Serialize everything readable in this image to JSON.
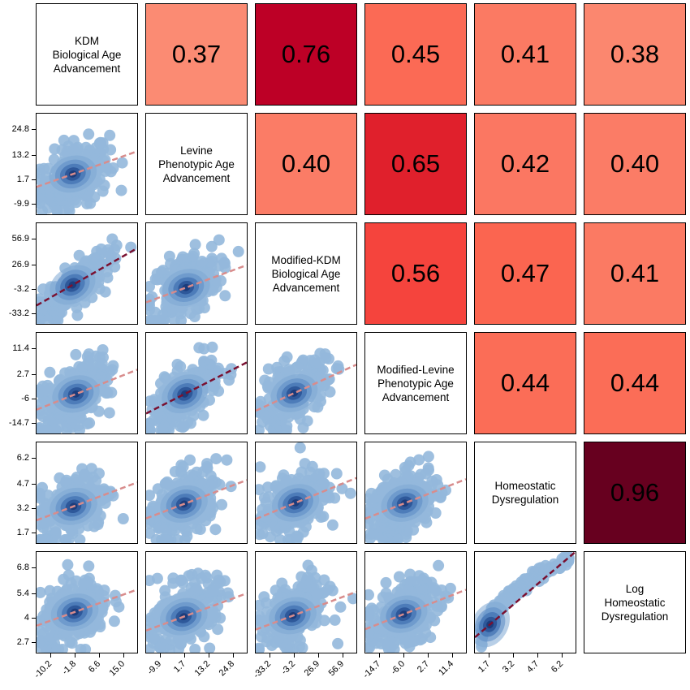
{
  "chart_data": {
    "type": "pairs_matrix",
    "variables": [
      "KDM\nBiological Age\nAdvancement",
      "Levine\nPhenotypic Age\nAdvancement",
      "Modified-KDM\nBiological Age\nAdvancement",
      "Modified-Levine\nPhenotypic Age\nAdvancement",
      "Homeostatic\nDysregulation",
      "Log\nHomeostatic\nDysregulation"
    ],
    "correlations": [
      {
        "row": 0,
        "col": 1,
        "value": "0.37",
        "r": 0.37,
        "color": "#fb8b73"
      },
      {
        "row": 0,
        "col": 2,
        "value": "0.76",
        "r": 0.76,
        "color": "#bd0026"
      },
      {
        "row": 0,
        "col": 3,
        "value": "0.45",
        "r": 0.45,
        "color": "#fb6a55"
      },
      {
        "row": 0,
        "col": 4,
        "value": "0.41",
        "r": 0.41,
        "color": "#fb7a63"
      },
      {
        "row": 0,
        "col": 5,
        "value": "0.38",
        "r": 0.38,
        "color": "#fb876f"
      },
      {
        "row": 1,
        "col": 2,
        "value": "0.40",
        "r": 0.4,
        "color": "#fb7c66"
      },
      {
        "row": 1,
        "col": 3,
        "value": "0.65",
        "r": 0.65,
        "color": "#e0202c"
      },
      {
        "row": 1,
        "col": 4,
        "value": "0.42",
        "r": 0.42,
        "color": "#fb7762"
      },
      {
        "row": 1,
        "col": 5,
        "value": "0.40",
        "r": 0.4,
        "color": "#fb7c66"
      },
      {
        "row": 2,
        "col": 3,
        "value": "0.56",
        "r": 0.56,
        "color": "#f5443d"
      },
      {
        "row": 2,
        "col": 4,
        "value": "0.47",
        "r": 0.47,
        "color": "#fb6550"
      },
      {
        "row": 2,
        "col": 5,
        "value": "0.41",
        "r": 0.41,
        "color": "#fb7a63"
      },
      {
        "row": 3,
        "col": 4,
        "value": "0.44",
        "r": 0.44,
        "color": "#fb6d57"
      },
      {
        "row": 3,
        "col": 5,
        "value": "0.44",
        "r": 0.44,
        "color": "#fb6d57"
      },
      {
        "row": 4,
        "col": 5,
        "value": "0.96",
        "r": 0.96,
        "color": "#67001f"
      }
    ],
    "y_axis_ticks": [
      {
        "row": 1,
        "labels": [
          "24.8",
          "13.2",
          "1.7",
          "-9.9"
        ]
      },
      {
        "row": 2,
        "labels": [
          "56.9",
          "26.9",
          "-3.2",
          "-33.2"
        ]
      },
      {
        "row": 3,
        "labels": [
          "11.4",
          "2.7",
          "-6",
          "-14.7"
        ]
      },
      {
        "row": 4,
        "labels": [
          "6.2",
          "4.7",
          "3.2",
          "1.7"
        ]
      },
      {
        "row": 5,
        "labels": [
          "6.8",
          "5.4",
          "4",
          "2.7"
        ]
      }
    ],
    "x_axis_ticks": [
      {
        "col": 0,
        "labels": [
          "-10.2",
          "-1.8",
          "6.6",
          "15.0"
        ]
      },
      {
        "col": 1,
        "labels": [
          "-9.9",
          "1.7",
          "13.2",
          "24.8"
        ]
      },
      {
        "col": 2,
        "labels": [
          "-33.2",
          "-3.2",
          "26.9",
          "56.9"
        ]
      },
      {
        "col": 3,
        "labels": [
          "-14.7",
          "-6.0",
          "2.7",
          "11.4"
        ]
      },
      {
        "col": 4,
        "labels": [
          "1.7",
          "3.2",
          "4.7",
          "6.2"
        ]
      }
    ],
    "scatter_colors": {
      "outer": "#94b8dc",
      "inner": "#1b3a78",
      "fit_line": "#d88c8c",
      "strong_fit_line": "#7a1030"
    }
  }
}
